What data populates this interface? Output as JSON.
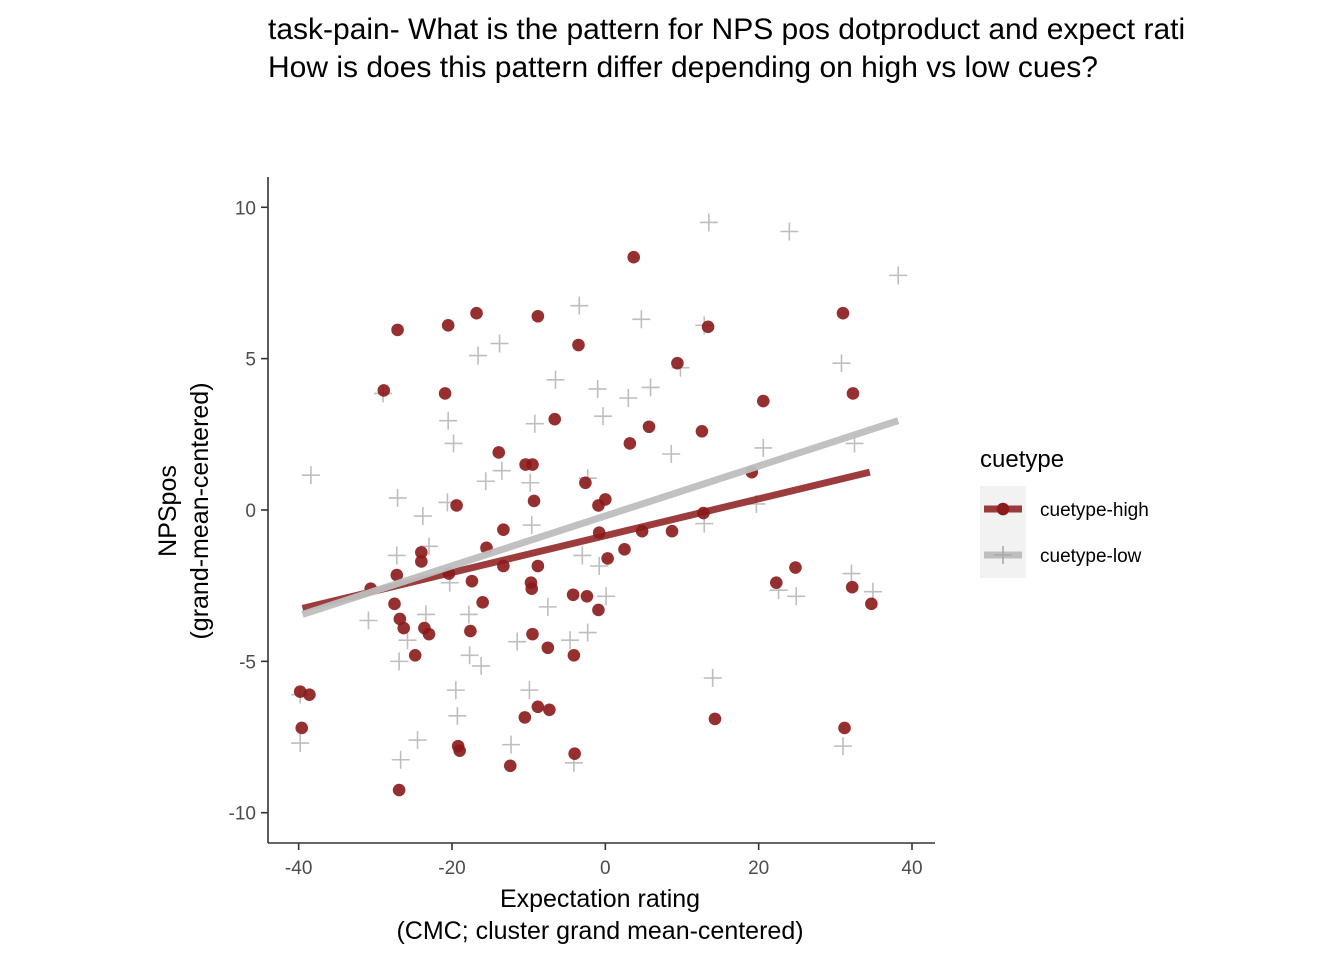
{
  "chart_data": {
    "type": "scatter",
    "title": [
      "task-pain- What is the pattern for NPS pos dotproduct and expect rati",
      "How is does this pattern differ depending on high vs low cues?"
    ],
    "xlabel": [
      "Expectation rating",
      "(CMC; cluster grand mean-centered)"
    ],
    "ylabel": [
      "NPSpos",
      "(grand-mean-centered)"
    ],
    "xlim": [
      -44,
      43
    ],
    "ylim": [
      -11,
      11
    ],
    "x_ticks": [
      -40,
      -20,
      0,
      20,
      40
    ],
    "y_ticks": [
      -10,
      -5,
      0,
      5,
      10
    ],
    "x_tick_labels": [
      "-40",
      "-20",
      "0",
      "20",
      "40"
    ],
    "y_tick_labels": [
      "-10",
      "-5",
      "0",
      "5",
      "10"
    ],
    "grid": false,
    "legend": {
      "title": "cuetype",
      "position": "right"
    },
    "series": [
      {
        "name": "cuetype-high",
        "color": "#8B1A1A",
        "marker": "circle",
        "line": {
          "x": [
            -39.5,
            34.5
          ],
          "y": [
            -3.25,
            1.25
          ]
        },
        "points": [
          [
            -39.8,
            -6.0
          ],
          [
            -39.6,
            -7.2
          ],
          [
            -38.6,
            -6.1
          ],
          [
            -30.6,
            -2.6
          ],
          [
            -28.9,
            3.95
          ],
          [
            -27.1,
            5.95
          ],
          [
            -27.5,
            -3.1
          ],
          [
            -27.2,
            -2.15
          ],
          [
            -26.8,
            -3.6
          ],
          [
            -26.3,
            -3.9
          ],
          [
            -26.9,
            -9.25
          ],
          [
            -24.8,
            -4.8
          ],
          [
            -24.0,
            -1.4
          ],
          [
            -24.0,
            -1.7
          ],
          [
            -23.6,
            -3.9
          ],
          [
            -23.0,
            -4.1
          ],
          [
            -20.9,
            3.85
          ],
          [
            -20.5,
            6.1
          ],
          [
            -20.4,
            -2.1
          ],
          [
            -19.4,
            0.15
          ],
          [
            -19.2,
            -7.8
          ],
          [
            -19.0,
            -7.95
          ],
          [
            -17.6,
            -4.0
          ],
          [
            -17.4,
            -2.35
          ],
          [
            -16.8,
            6.5
          ],
          [
            -16.0,
            -3.05
          ],
          [
            -15.5,
            -1.25
          ],
          [
            -13.9,
            1.9
          ],
          [
            -13.3,
            -0.65
          ],
          [
            -13.3,
            -1.85
          ],
          [
            -12.4,
            -8.45
          ],
          [
            -10.5,
            -6.85
          ],
          [
            -10.4,
            1.5
          ],
          [
            -9.7,
            -2.4
          ],
          [
            -9.6,
            -2.6
          ],
          [
            -9.5,
            -4.1
          ],
          [
            -9.5,
            1.5
          ],
          [
            -9.3,
            0.3
          ],
          [
            -8.8,
            6.4
          ],
          [
            -8.8,
            -1.85
          ],
          [
            -8.8,
            -6.5
          ],
          [
            -7.5,
            -4.55
          ],
          [
            -7.3,
            -6.6
          ],
          [
            -6.6,
            3.0
          ],
          [
            -4.2,
            -2.8
          ],
          [
            -4.1,
            -4.8
          ],
          [
            -4.0,
            -8.05
          ],
          [
            -3.5,
            5.45
          ],
          [
            -2.6,
            0.9
          ],
          [
            -2.4,
            -2.85
          ],
          [
            -0.9,
            0.15
          ],
          [
            -0.9,
            -3.3
          ],
          [
            -0.8,
            -0.75
          ],
          [
            0.0,
            0.35
          ],
          [
            0.3,
            -1.6
          ],
          [
            2.5,
            -1.3
          ],
          [
            3.2,
            2.2
          ],
          [
            3.7,
            8.35
          ],
          [
            4.8,
            -0.7
          ],
          [
            5.7,
            2.75
          ],
          [
            8.7,
            -0.7
          ],
          [
            9.4,
            4.85
          ],
          [
            12.6,
            2.6
          ],
          [
            12.8,
            -0.1
          ],
          [
            13.4,
            6.05
          ],
          [
            14.3,
            -6.9
          ],
          [
            19.1,
            1.25
          ],
          [
            20.6,
            3.6
          ],
          [
            22.3,
            -2.4
          ],
          [
            24.8,
            -1.9
          ],
          [
            31.0,
            6.5
          ],
          [
            31.2,
            -7.2
          ],
          [
            32.2,
            -2.55
          ],
          [
            32.3,
            3.85
          ],
          [
            34.7,
            -3.1
          ]
        ]
      },
      {
        "name": "cuetype-low",
        "color": "#BEBEBE",
        "marker": "plus",
        "line": {
          "x": [
            -39.5,
            38.2
          ],
          "y": [
            -3.45,
            2.95
          ]
        },
        "points": [
          [
            -39.8,
            -6.1
          ],
          [
            -39.8,
            -7.7
          ],
          [
            -38.4,
            1.15
          ],
          [
            -30.9,
            -3.65
          ],
          [
            -29.0,
            3.85
          ],
          [
            -27.1,
            0.4
          ],
          [
            -27.2,
            -1.5
          ],
          [
            -26.9,
            -5.0
          ],
          [
            -26.7,
            -8.25
          ],
          [
            -25.8,
            -4.3
          ],
          [
            -24.5,
            -7.6
          ],
          [
            -23.8,
            -0.2
          ],
          [
            -23.4,
            -3.45
          ],
          [
            -23.0,
            -1.2
          ],
          [
            -20.6,
            0.25
          ],
          [
            -20.5,
            2.95
          ],
          [
            -20.3,
            -2.4
          ],
          [
            -19.8,
            2.2
          ],
          [
            -19.5,
            -5.95
          ],
          [
            -19.3,
            -6.8
          ],
          [
            -17.8,
            -3.45
          ],
          [
            -17.7,
            -4.8
          ],
          [
            -16.6,
            5.1
          ],
          [
            -16.2,
            -5.15
          ],
          [
            -15.6,
            0.95
          ],
          [
            -13.8,
            5.5
          ],
          [
            -13.5,
            1.3
          ],
          [
            -12.3,
            -7.75
          ],
          [
            -11.5,
            -4.35
          ],
          [
            -9.9,
            -5.95
          ],
          [
            -9.8,
            0.9
          ],
          [
            -9.6,
            -0.5
          ],
          [
            -9.2,
            2.85
          ],
          [
            -7.5,
            -3.2
          ],
          [
            -6.5,
            4.3
          ],
          [
            -4.6,
            -4.3
          ],
          [
            -4.1,
            -8.35
          ],
          [
            -3.4,
            6.75
          ],
          [
            -3.0,
            -1.5
          ],
          [
            -2.3,
            -4.05
          ],
          [
            -2.3,
            1.05
          ],
          [
            -1.0,
            4.0
          ],
          [
            -0.8,
            -1.85
          ],
          [
            -0.3,
            3.1
          ],
          [
            0.1,
            -2.85
          ],
          [
            3.0,
            3.7
          ],
          [
            4.7,
            6.3
          ],
          [
            5.9,
            4.05
          ],
          [
            8.6,
            1.85
          ],
          [
            9.8,
            4.7
          ],
          [
            12.9,
            6.1
          ],
          [
            12.9,
            -0.45
          ],
          [
            13.5,
            9.5
          ],
          [
            14.0,
            -5.55
          ],
          [
            19.7,
            0.2
          ],
          [
            20.6,
            2.05
          ],
          [
            22.6,
            -2.65
          ],
          [
            24.0,
            9.2
          ],
          [
            24.9,
            -2.85
          ],
          [
            30.8,
            4.85
          ],
          [
            31.0,
            -7.8
          ],
          [
            32.1,
            -2.1
          ],
          [
            32.5,
            2.2
          ],
          [
            34.9,
            -2.7
          ],
          [
            38.2,
            7.75
          ]
        ]
      }
    ]
  }
}
